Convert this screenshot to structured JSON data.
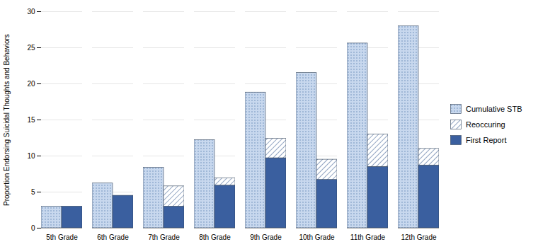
{
  "chart_data": {
    "type": "bar",
    "categories": [
      "5th Grade",
      "6th Grade",
      "7th Grade",
      "8th Grade",
      "9th Grade",
      "10th Grade",
      "11th Grade",
      "12th Grade"
    ],
    "ylabel": "Proportion Endorsing Suicidal Thoughts and Behaviors",
    "ylim": [
      0,
      30
    ],
    "yticks": [
      0,
      5,
      10,
      15,
      20,
      25,
      30
    ],
    "grid": true,
    "legend": "right",
    "series": [
      {
        "name": "Cumulative STB",
        "color": "#C8D8EE",
        "stacked": false,
        "values": [
          3.0,
          6.2,
          8.4,
          12.2,
          18.8,
          21.5,
          25.6,
          28.0
        ]
      },
      {
        "name": "Reoccuring",
        "color": "#ffffff",
        "stacked": true,
        "values": [
          0.0,
          0.0,
          2.8,
          1.0,
          2.7,
          2.8,
          4.5,
          2.3
        ]
      },
      {
        "name": "First Report",
        "color": "#3A5F9F",
        "stacked": true,
        "values": [
          3.0,
          4.5,
          3.0,
          5.9,
          9.7,
          6.7,
          8.5,
          8.7
        ]
      }
    ]
  }
}
